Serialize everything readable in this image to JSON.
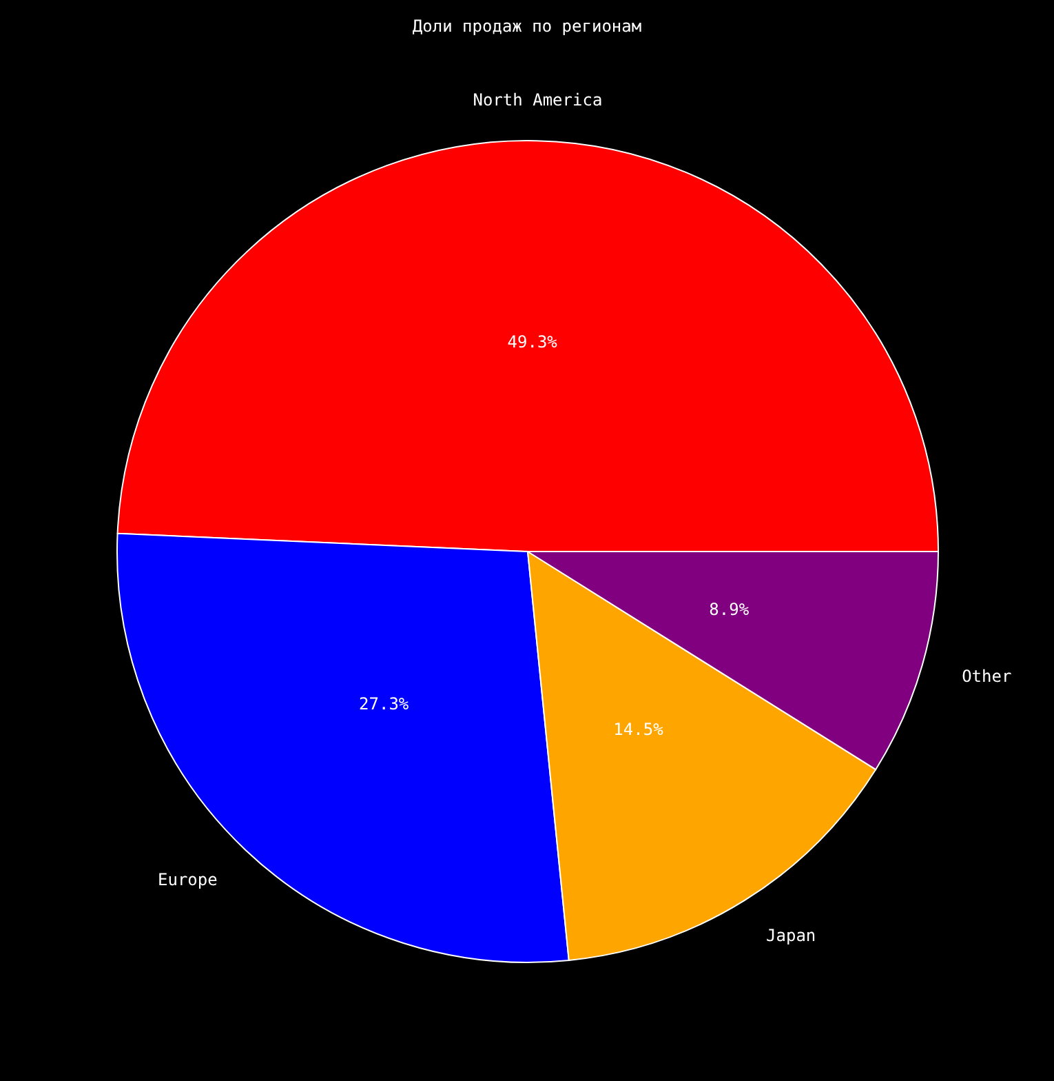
{
  "chart_data": {
    "type": "pie",
    "title": "Доли продаж по регионам",
    "categories": [
      "North America",
      "Europe",
      "Japan",
      "Other"
    ],
    "values": [
      49.3,
      27.3,
      14.5,
      8.9
    ],
    "colors": [
      "#ff0000",
      "#0000ff",
      "#ffa500",
      "#800080"
    ],
    "value_labels": [
      "49.3%",
      "27.3%",
      "14.5%",
      "8.9%"
    ]
  }
}
